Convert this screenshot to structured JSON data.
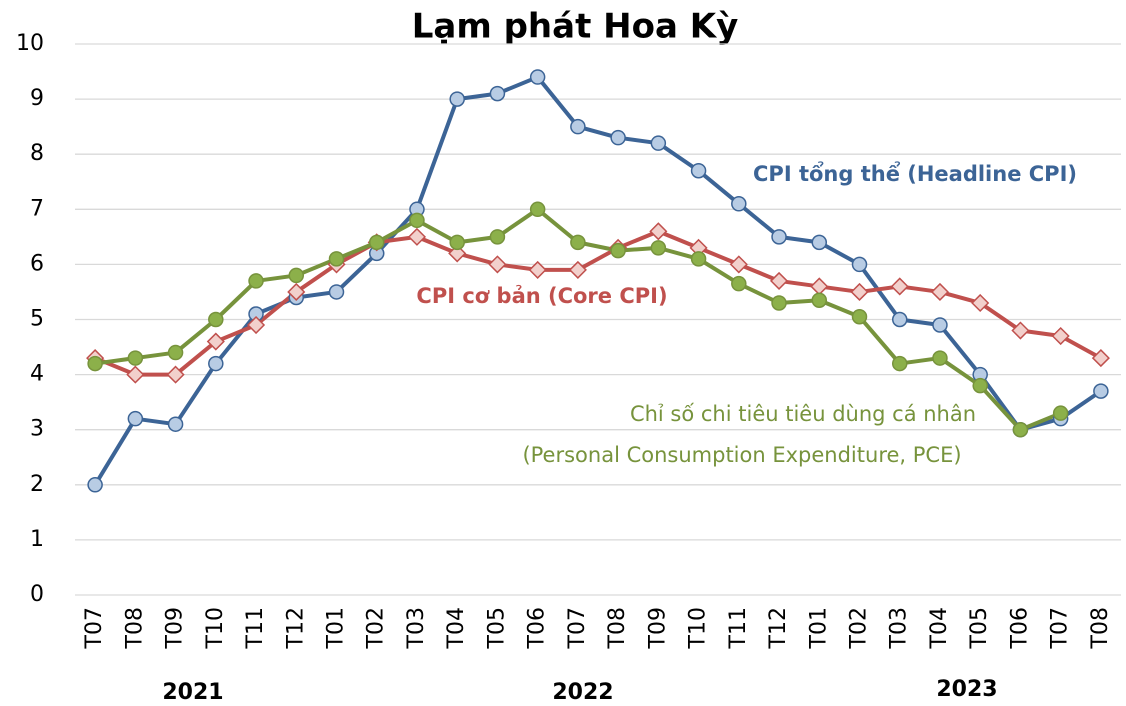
{
  "chart_data": {
    "type": "line",
    "title": "Lạm phát Hoa Kỳ",
    "categories": [
      "T07",
      "T08",
      "T09",
      "T10",
      "T11",
      "T12",
      "T01",
      "T02",
      "T03",
      "T04",
      "T05",
      "T06",
      "T07",
      "T08",
      "T09",
      "T10",
      "T11",
      "T12",
      "T01",
      "T02",
      "T03",
      "T04",
      "T05",
      "T06",
      "T07",
      "T08"
    ],
    "year_labels": [
      "2021",
      "2022",
      "2023"
    ],
    "ylim": [
      0,
      10
    ],
    "yticks": [
      0,
      1,
      2,
      3,
      4,
      5,
      6,
      7,
      8,
      9,
      10
    ],
    "grid": true,
    "series": [
      {
        "name": "CPI tổng thể (Headline CPI)",
        "color": "#3c6496",
        "marker": "circle",
        "marker_fill": "#b8cce4",
        "values": [
          2.0,
          3.2,
          3.1,
          4.2,
          5.1,
          5.4,
          5.5,
          6.2,
          7.0,
          9.0,
          9.1,
          9.4,
          8.5,
          8.3,
          8.2,
          7.7,
          7.1,
          6.5,
          6.4,
          6.0,
          5.0,
          4.9,
          4.0,
          3.0,
          3.2,
          3.7
        ]
      },
      {
        "name": "CPI cơ bản (Core CPI)",
        "color": "#c0504d",
        "marker": "diamond",
        "marker_fill": "#f2d0cc",
        "values": [
          4.3,
          4.0,
          4.0,
          4.6,
          4.9,
          5.5,
          6.0,
          6.4,
          6.5,
          6.2,
          6.0,
          5.9,
          5.9,
          6.3,
          6.6,
          6.3,
          6.0,
          5.7,
          5.6,
          5.5,
          5.6,
          5.5,
          5.3,
          4.8,
          4.7,
          4.3
        ]
      },
      {
        "name_lines": [
          "Chỉ số chi tiêu tiêu dùng cá nhân",
          "(Personal Consumption Expenditure, PCE)"
        ],
        "color": "#77933c",
        "marker": "circle",
        "marker_fill": "#8cb04a",
        "values": [
          4.2,
          4.3,
          4.4,
          5.0,
          5.7,
          5.8,
          6.1,
          6.4,
          6.8,
          6.4,
          6.5,
          7.0,
          6.4,
          6.25,
          6.3,
          6.1,
          5.65,
          5.3,
          5.35,
          5.05,
          4.2,
          4.3,
          3.8,
          3.0,
          3.3,
          null
        ]
      }
    ]
  }
}
